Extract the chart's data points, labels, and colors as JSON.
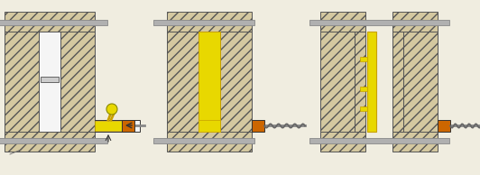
{
  "bg_color": "#f0ede0",
  "hatch_face": "#d4c8a0",
  "hatch_edge": "#555555",
  "liquid_yellow": "#e8d800",
  "dark_yellow": "#c8a000",
  "orange": "#cc6600",
  "rod_gray": "#b0b0b0",
  "border": "#333333",
  "white_cavity": "#f5f5f5",
  "stage1": {
    "ox": 5,
    "oy": 8
  },
  "stage2": {
    "ox": 185,
    "oy": 8
  },
  "stage3": {
    "ox": 355,
    "oy": 8
  }
}
